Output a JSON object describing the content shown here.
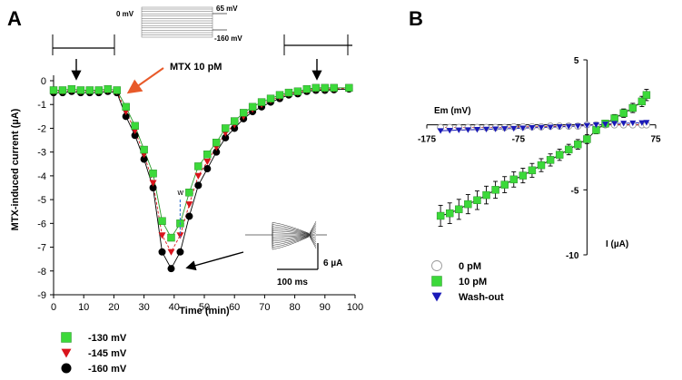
{
  "panels": {
    "a_letter": "A",
    "b_letter": "B"
  },
  "panel_a": {
    "protocol": {
      "zero_label": "0 mV",
      "top_label": "65 mV",
      "bottom_label": "-160 mV"
    },
    "mtx_annotation": "MTX 10 pM",
    "w_label": "w",
    "scale_current": "6 µA",
    "scale_time": "100 ms"
  },
  "panel_b": {
    "em_label": "Em (mV)",
    "i_label": "I (µA)"
  },
  "colors": {
    "green": "#3cd93a",
    "red": "#d9141c",
    "black": "#000000",
    "blue": "#1a1ab8",
    "arrow_red": "#e85a2a",
    "w_line": "#3a7bd5"
  },
  "chart_data": [
    {
      "type": "scatter",
      "panel": "A",
      "xlabel": "Time (min)",
      "ylabel": "MTX-induced current (µA)",
      "xlim": [
        0,
        100
      ],
      "ylim": [
        -9,
        0
      ],
      "xticks": [
        "0",
        "10",
        "20",
        "30",
        "40",
        "50",
        "60",
        "70",
        "80",
        "90",
        "100"
      ],
      "yticks": [
        "0",
        "-1",
        "-2",
        "-3",
        "-4",
        "-5",
        "-6",
        "-7",
        "-8",
        "-9"
      ],
      "legend_position": "bottom-left",
      "series": [
        {
          "name": "-130 mV",
          "color": "#3cd93a",
          "marker": "square",
          "x": [
            0,
            3,
            6,
            9,
            12,
            15,
            18,
            21,
            24,
            27,
            30,
            33,
            36,
            39,
            42,
            45,
            48,
            51,
            54,
            57,
            60,
            63,
            66,
            69,
            72,
            75,
            78,
            81,
            84,
            87,
            90,
            93,
            98
          ],
          "y": [
            -0.4,
            -0.4,
            -0.35,
            -0.4,
            -0.4,
            -0.4,
            -0.35,
            -0.4,
            -1.1,
            -1.9,
            -2.9,
            -3.9,
            -5.9,
            -6.6,
            -6.0,
            -4.7,
            -3.6,
            -3.1,
            -2.6,
            -2.0,
            -1.7,
            -1.35,
            -1.1,
            -0.9,
            -0.75,
            -0.6,
            -0.5,
            -0.45,
            -0.35,
            -0.3,
            -0.3,
            -0.3,
            -0.3
          ]
        },
        {
          "name": "-145 mV",
          "color": "#d9141c",
          "marker": "triangle",
          "x": [
            0,
            3,
            6,
            9,
            12,
            15,
            18,
            21,
            24,
            27,
            30,
            33,
            36,
            39,
            42,
            45,
            48,
            51,
            54,
            57,
            60,
            63,
            66,
            69,
            72,
            75,
            78,
            81,
            84,
            87,
            90,
            93,
            98
          ],
          "y": [
            -0.45,
            -0.45,
            -0.4,
            -0.45,
            -0.45,
            -0.45,
            -0.4,
            -0.45,
            -1.3,
            -2.1,
            -3.1,
            -4.3,
            -6.5,
            -7.2,
            -6.5,
            -5.2,
            -4.0,
            -3.4,
            -2.8,
            -2.2,
            -1.85,
            -1.5,
            -1.2,
            -1.0,
            -0.82,
            -0.68,
            -0.55,
            -0.5,
            -0.4,
            -0.35,
            -0.35,
            -0.35,
            -0.32
          ]
        },
        {
          "name": "-160 mV",
          "color": "#000000",
          "marker": "circle",
          "x": [
            0,
            3,
            6,
            9,
            12,
            15,
            18,
            21,
            24,
            27,
            30,
            33,
            36,
            39,
            42,
            45,
            48,
            51,
            54,
            57,
            60,
            63,
            66,
            69,
            72,
            75,
            78,
            81,
            84,
            87,
            90,
            93,
            98
          ],
          "y": [
            -0.5,
            -0.5,
            -0.45,
            -0.5,
            -0.5,
            -0.5,
            -0.45,
            -0.5,
            -1.5,
            -2.3,
            -3.3,
            -4.5,
            -7.2,
            -7.9,
            -7.2,
            -5.7,
            -4.4,
            -3.7,
            -3.0,
            -2.4,
            -2.0,
            -1.6,
            -1.3,
            -1.1,
            -0.9,
            -0.75,
            -0.6,
            -0.55,
            -0.45,
            -0.4,
            -0.4,
            -0.38,
            -0.35
          ]
        }
      ]
    },
    {
      "type": "line",
      "panel": "B",
      "xlabel": "Em (mV)",
      "ylabel": "I (µA)",
      "xlim": [
        -175,
        75
      ],
      "ylim": [
        -10,
        5
      ],
      "xticks": [
        "-175",
        "-75",
        "75"
      ],
      "yticks": [
        "5",
        "-5",
        "-10"
      ],
      "legend_position": "bottom-left",
      "series": [
        {
          "name": "0 pM",
          "color": "#000000",
          "marker": "open-circle",
          "x": [
            -160,
            -150,
            -140,
            -130,
            -120,
            -110,
            -100,
            -90,
            -80,
            -70,
            -60,
            -50,
            -40,
            -30,
            -20,
            -10,
            0,
            10,
            20,
            30,
            40,
            50,
            60,
            65
          ],
          "y": [
            -0.2,
            -0.2,
            -0.2,
            -0.2,
            -0.2,
            -0.2,
            -0.2,
            -0.2,
            -0.15,
            -0.15,
            -0.15,
            -0.15,
            -0.1,
            -0.1,
            -0.1,
            -0.1,
            0,
            0,
            0,
            0,
            0,
            0,
            0,
            0
          ]
        },
        {
          "name": "10 pM",
          "color": "#3cd93a",
          "marker": "square",
          "x": [
            -160,
            -150,
            -140,
            -130,
            -120,
            -110,
            -100,
            -90,
            -80,
            -70,
            -60,
            -50,
            -40,
            -30,
            -20,
            -10,
            0,
            10,
            20,
            30,
            40,
            50,
            60,
            65
          ],
          "y": [
            -7.0,
            -6.8,
            -6.5,
            -6.1,
            -5.8,
            -5.4,
            -5.0,
            -4.6,
            -4.2,
            -3.9,
            -3.5,
            -3.1,
            -2.7,
            -2.3,
            -1.9,
            -1.5,
            -1.1,
            -0.4,
            0.1,
            0.5,
            0.9,
            1.3,
            1.8,
            2.3
          ]
        },
        {
          "name": "Wash-out",
          "color": "#1a1ab8",
          "marker": "triangle",
          "x": [
            -160,
            -150,
            -140,
            -130,
            -120,
            -110,
            -100,
            -90,
            -80,
            -70,
            -60,
            -50,
            -40,
            -30,
            -20,
            -10,
            0,
            10,
            20,
            30,
            40,
            50,
            60,
            65
          ],
          "y": [
            -0.45,
            -0.43,
            -0.4,
            -0.38,
            -0.36,
            -0.34,
            -0.32,
            -0.3,
            -0.28,
            -0.25,
            -0.22,
            -0.2,
            -0.18,
            -0.15,
            -0.12,
            -0.1,
            -0.05,
            0.0,
            0.05,
            0.1,
            0.12,
            0.14,
            0.16,
            0.18
          ]
        }
      ]
    }
  ]
}
